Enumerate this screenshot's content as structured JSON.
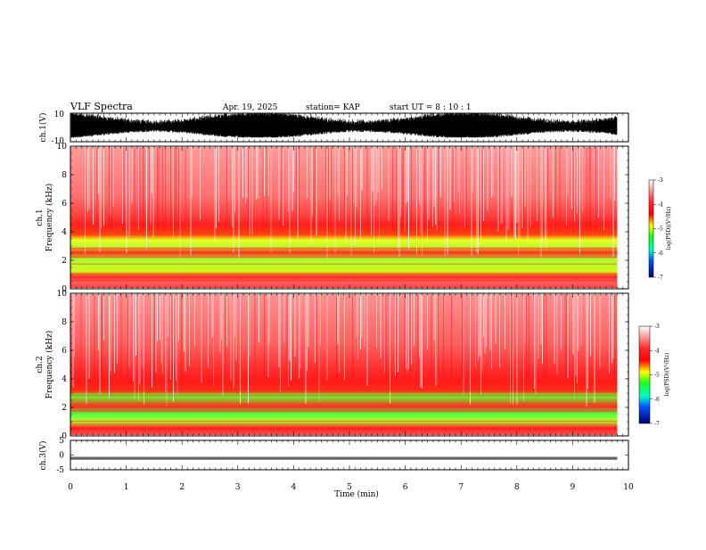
{
  "header": {
    "title": "VLF Spectra",
    "date": "Apr. 19, 2025",
    "station": "station= KAP",
    "start": "start  UT  =   8  : 10 : 1"
  },
  "chart_data": [
    {
      "type": "line",
      "ylabel": "ch.1(V)",
      "ylim": [
        -10,
        10
      ],
      "yticks": [
        "10",
        "-10"
      ],
      "xlim": [
        0,
        10
      ],
      "description_series": "dense waveform, amplitude roughly -7 to 10 V"
    },
    {
      "type": "heatmap",
      "ylabel_top": "ch.1",
      "ylabel": "Frequency  (kHz)",
      "ylim": [
        0,
        10
      ],
      "yticks": [
        "0",
        "2",
        "4",
        "6",
        "8",
        "10"
      ],
      "xlim": [
        0,
        10
      ],
      "colorbar": {
        "ticks": [
          "-3",
          "-4",
          "-5",
          "-6",
          "-7"
        ],
        "label": "log(PSD)(V²/Hz)"
      },
      "data_end_min": 9.8,
      "bands_khz": {
        "green_low": [
          0.4,
          3.5
        ],
        "yellow_red_upper": [
          3.5,
          4.8
        ],
        "red_white_above": [
          4.8,
          10
        ]
      }
    },
    {
      "type": "heatmap",
      "ylabel_top": "ch.2",
      "ylabel": "Frequency  (kHz)",
      "ylim": [
        0,
        10
      ],
      "yticks": [
        "0",
        "2",
        "4",
        "6",
        "8",
        "10"
      ],
      "xlim": [
        0,
        10
      ],
      "colorbar": {
        "ticks": [
          "-3",
          "-4",
          "-5",
          "-6",
          "-7"
        ],
        "label": "log(PSD)(V²/Hz)"
      },
      "data_end_min": 9.8,
      "bands_khz": {
        "green_low": [
          0.4,
          3.0
        ],
        "yellow_red_upper": [
          3.0,
          4.0
        ],
        "red_white_above": [
          4.0,
          10
        ]
      }
    },
    {
      "type": "line",
      "ylabel": "ch.3(V)",
      "ylim": [
        -5,
        5
      ],
      "yticks": [
        "5",
        "0",
        "-5"
      ],
      "xlim": [
        0,
        10
      ],
      "description_series": "nearly constant trace near -1 V"
    }
  ],
  "xaxis": {
    "label": "Time  (min)",
    "ticks": [
      "0",
      "1",
      "2",
      "3",
      "4",
      "5",
      "6",
      "7",
      "8",
      "9",
      "10"
    ]
  },
  "colors": {
    "white": "#ffffff",
    "red": "#ff1a1a",
    "yellow": "#ffff00",
    "green": "#1aff1a",
    "blue": "#0030ff",
    "navy": "#000060"
  }
}
